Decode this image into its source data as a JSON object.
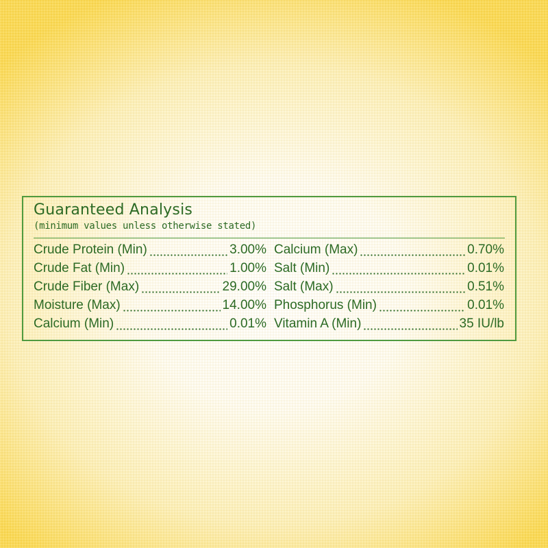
{
  "header": {
    "title": "Guaranteed Analysis",
    "subtitle": "(minimum values unless otherwise stated)"
  },
  "columns": [
    [
      {
        "label": "Crude Protein (Min)",
        "value": "3.00%"
      },
      {
        "label": "Crude Fat (Min)",
        "value": "1.00%"
      },
      {
        "label": "Crude Fiber (Max)",
        "value": "29.00%"
      },
      {
        "label": "Moisture (Max)",
        "value": "14.00%"
      },
      {
        "label": "Calcium (Min)",
        "value": "0.01%"
      }
    ],
    [
      {
        "label": "Calcium (Max)",
        "value": "0.70%"
      },
      {
        "label": "Salt (Min)",
        "value": "0.01%"
      },
      {
        "label": "Salt (Max)",
        "value": "0.51%"
      },
      {
        "label": "Phosphorus (Min)",
        "value": "0.01%"
      },
      {
        "label": "Vitamin A (Min)",
        "value": "35 IU/lb"
      }
    ]
  ]
}
